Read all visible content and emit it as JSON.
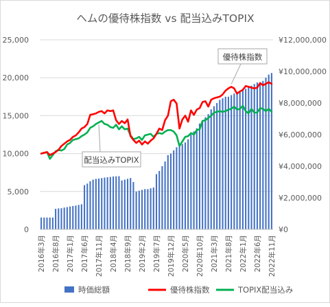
{
  "chart_data": {
    "type": "bar+line",
    "title": "ヘムの優待株指数 vs 配当込みTOPIX",
    "categories": [
      "2016年3月",
      "2016年4月",
      "2016年5月",
      "2016年6月",
      "2016年7月",
      "2016年8月",
      "2016年9月",
      "2016年10月",
      "2016年11月",
      "2016年12月",
      "2017年1月",
      "2017年2月",
      "2017年3月",
      "2017年4月",
      "2017年5月",
      "2017年6月",
      "2017年7月",
      "2017年8月",
      "2017年9月",
      "2017年10月",
      "2017年11月",
      "2017年12月",
      "2018年1月",
      "2018年2月",
      "2018年3月",
      "2018年4月",
      "2018年5月",
      "2018年6月",
      "2018年7月",
      "2018年8月",
      "2018年9月",
      "2018年10月",
      "2018年11月",
      "2018年12月",
      "2019年1月",
      "2019年2月",
      "2019年3月",
      "2019年4月",
      "2019年5月",
      "2019年6月",
      "2019年7月",
      "2019年8月",
      "2019年9月",
      "2019年10月",
      "2019年11月",
      "2019年12月",
      "2020年1月",
      "2020年2月",
      "2020年3月",
      "2020年4月",
      "2020年5月",
      "2020年6月",
      "2020年7月",
      "2020年8月",
      "2020年9月",
      "2020年10月",
      "2020年11月",
      "2020年12月",
      "2021年1月",
      "2021年2月",
      "2021年3月",
      "2021年4月",
      "2021年5月",
      "2021年6月",
      "2021年7月",
      "2021年8月",
      "2021年9月",
      "2021年10月",
      "2021年11月",
      "2021年12月",
      "2022年1月",
      "2022年2月",
      "2022年3月",
      "2022年4月",
      "2022年5月",
      "2022年6月",
      "2022年7月",
      "2022年8月",
      "2022年9月",
      "2022年10月",
      "2022年11月"
    ],
    "x_tick_labels": [
      "2016年3月",
      "2016年8月",
      "2017年1月",
      "2017年6月",
      "2017年11月",
      "2018年4月",
      "2018年9月",
      "2019年2月",
      "2019年7月",
      "2019年12月",
      "2020年5月",
      "2020年10月",
      "2021年3月",
      "2021年8月",
      "2022年1月",
      "2022年6月",
      "2022年11月"
    ],
    "y_left": {
      "ticks": [
        "0",
        "5,000",
        "10,000",
        "15,000",
        "20,000",
        "25,000"
      ],
      "range": [
        0,
        25000
      ]
    },
    "y_right": {
      "ticks": [
        "¥0",
        "¥2,000,000",
        "¥4,000,000",
        "¥6,000,000",
        "¥8,000,000",
        "¥10,000,000",
        "¥12,000,000"
      ],
      "range": [
        0,
        12000000
      ]
    },
    "series": [
      {
        "name": "時価総額",
        "type": "bar",
        "axis": "right",
        "color": "#4472c4",
        "values": [
          750000,
          750000,
          750000,
          750000,
          750000,
          1300000,
          1330000,
          1340000,
          1380000,
          1410000,
          1450000,
          1480000,
          1510000,
          1550000,
          1590000,
          2800000,
          2900000,
          3050000,
          3150000,
          3200000,
          3220000,
          3250000,
          3280000,
          3300000,
          3320000,
          3350000,
          3360000,
          3370000,
          3100000,
          3150000,
          3200000,
          3250000,
          3000000,
          2400000,
          2450000,
          2500000,
          2550000,
          2550000,
          2600000,
          2650000,
          3500000,
          3700000,
          4000000,
          4300000,
          4700000,
          4800000,
          5000000,
          5200000,
          5300000,
          5400000,
          5500000,
          5700000,
          6000000,
          6200000,
          6400000,
          6700000,
          6900000,
          7100000,
          7300000,
          7600000,
          7800000,
          8000000,
          8200000,
          8300000,
          8400000,
          8400000,
          8500000,
          8600000,
          8700000,
          8700000,
          8800000,
          8900000,
          9000000,
          9100000,
          9200000,
          9300000,
          9300000,
          9400000,
          9600000,
          9800000,
          9900000
        ]
      },
      {
        "name": "優待株指数",
        "type": "line",
        "axis": "left",
        "color": "#ff0000",
        "values": [
          10000,
          10100,
          10200,
          9800,
          10000,
          10200,
          10500,
          11000,
          11300,
          11600,
          11800,
          12200,
          12400,
          12800,
          13300,
          13500,
          13900,
          15100,
          15200,
          15300,
          15500,
          15600,
          15300,
          15700,
          15600,
          15700,
          14400,
          13900,
          14300,
          14000,
          14500,
          12300,
          11800,
          11400,
          11700,
          11200,
          11600,
          11300,
          11700,
          12000,
          12600,
          13300,
          13100,
          14400,
          15000,
          16900,
          17100,
          16600,
          13300,
          14500,
          15000,
          14200,
          15700,
          15100,
          15800,
          16000,
          16800,
          16900,
          16200,
          17100,
          17300,
          17400,
          17500,
          17800,
          18300,
          18600,
          18800,
          18600,
          17900,
          18200,
          18400,
          18900,
          18800,
          18700,
          18600,
          18700,
          19300,
          19000,
          19200,
          19400,
          19200
        ]
      },
      {
        "name": "TOPIX配当込み",
        "type": "line",
        "axis": "left",
        "color": "#00b050",
        "values": [
          10000,
          10100,
          10200,
          9300,
          9800,
          10300,
          10500,
          10400,
          10600,
          11200,
          11400,
          11800,
          11900,
          12000,
          12300,
          12500,
          12800,
          13400,
          13600,
          13900,
          14100,
          14300,
          13900,
          13800,
          13500,
          13400,
          13800,
          13200,
          13600,
          13200,
          13300,
          12400,
          11900,
          12000,
          12200,
          11800,
          12400,
          12500,
          12600,
          12200,
          12600,
          12700,
          12600,
          12900,
          13100,
          13100,
          12900,
          12400,
          11000,
          11600,
          12200,
          12300,
          12700,
          12500,
          13100,
          13200,
          14300,
          14400,
          14700,
          15000,
          15400,
          15500,
          15600,
          15500,
          15600,
          15800,
          15900,
          16200,
          15800,
          15900,
          16300,
          15600,
          15300,
          15900,
          15400,
          15400,
          16000,
          15900,
          15600,
          15900,
          15500
        ]
      }
    ],
    "annotations": [
      "優待株指数",
      "配当込みTOPIX"
    ],
    "legend_position": "bottom",
    "grid": true
  }
}
